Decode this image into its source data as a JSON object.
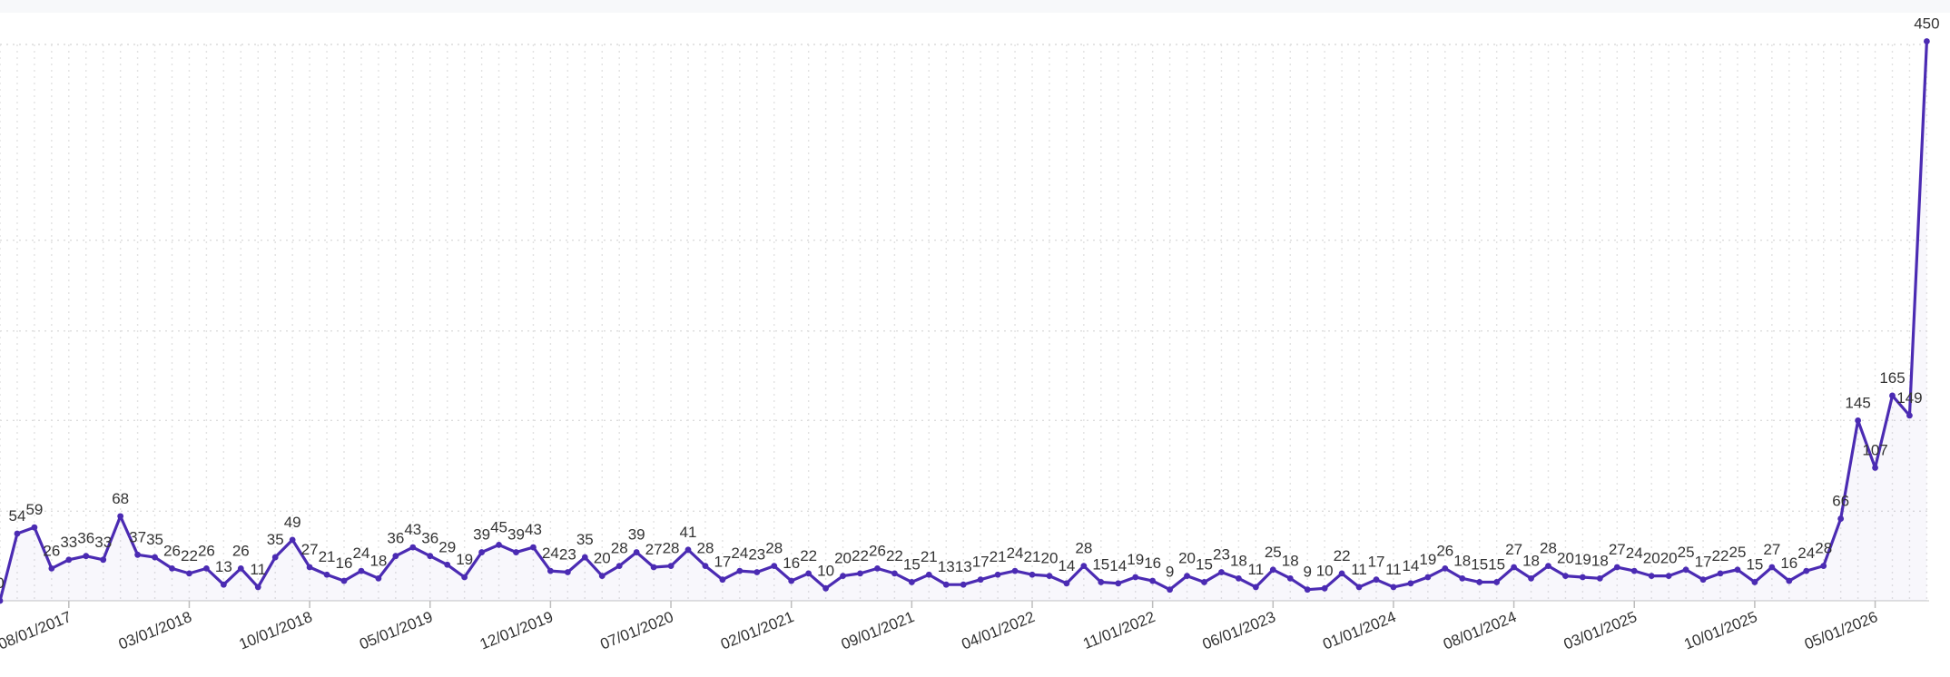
{
  "chart_data": {
    "type": "line",
    "title": "",
    "xlabel": "",
    "ylabel": "",
    "x_tick_labels": [
      "08/01/2017",
      "03/01/2018",
      "10/01/2018",
      "05/01/2019",
      "12/01/2019",
      "07/01/2020",
      "02/01/2021",
      "09/01/2021",
      "04/01/2022",
      "11/01/2022",
      "06/01/2023",
      "01/01/2024",
      "08/01/2024",
      "03/01/2025",
      "10/01/2025",
      "05/01/2026"
    ],
    "ylim": [
      0,
      450
    ],
    "grid": true,
    "legend": "none",
    "series": [
      {
        "color": "#4b2bb3",
        "values": [
          0,
          54,
          59,
          26,
          33,
          36,
          33,
          68,
          37,
          35,
          26,
          22,
          26,
          13,
          26,
          11,
          35,
          49,
          27,
          21,
          16,
          24,
          18,
          36,
          43,
          36,
          29,
          19,
          39,
          45,
          39,
          43,
          24,
          23,
          35,
          20,
          28,
          39,
          27,
          28,
          41,
          28,
          17,
          24,
          23,
          28,
          16,
          22,
          10,
          20,
          22,
          26,
          22,
          15,
          21,
          13,
          13,
          17,
          21,
          24,
          21,
          20,
          14,
          28,
          15,
          14,
          19,
          16,
          9,
          20,
          15,
          23,
          18,
          11,
          25,
          18,
          9,
          10,
          22,
          11,
          17,
          11,
          14,
          19,
          26,
          18,
          15,
          15,
          27,
          18,
          28,
          20,
          19,
          18,
          27,
          24,
          20,
          20,
          25,
          17,
          22,
          25,
          15,
          27,
          16,
          24,
          28,
          66,
          145,
          107,
          165,
          149,
          450
        ]
      }
    ]
  }
}
